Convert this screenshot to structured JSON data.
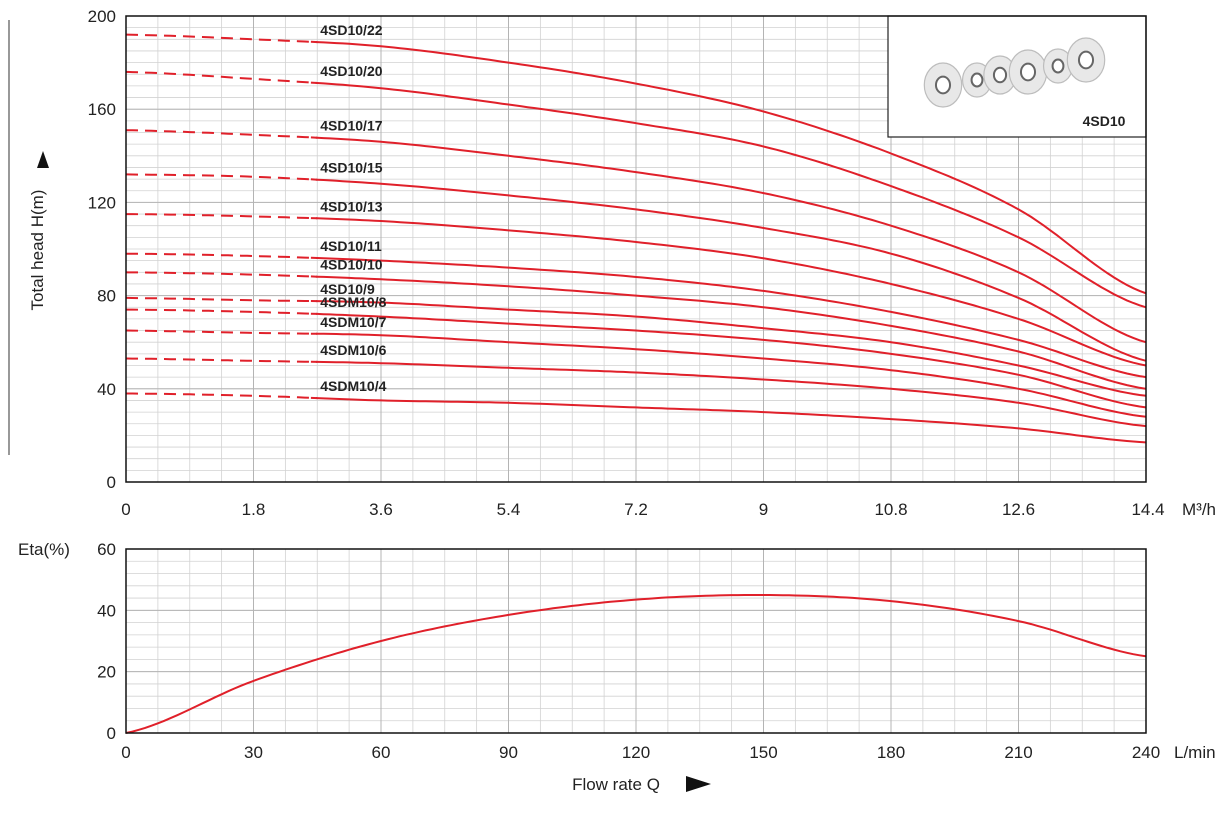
{
  "chart_data": [
    {
      "type": "line",
      "title": "",
      "xlabel": "",
      "ylabel": "Total head H(m)",
      "x_unit": "M³/h",
      "xlim": [
        0,
        14.4
      ],
      "ylim": [
        0,
        200
      ],
      "x_ticks": [
        "0",
        "1.8",
        "3.6",
        "5.4",
        "7.2",
        "9",
        "10.8",
        "12.6",
        "14.4"
      ],
      "y_ticks": [
        "0",
        "40",
        "80",
        "120",
        "160",
        "200"
      ],
      "grid": true,
      "x": [
        0,
        1.8,
        3.6,
        5.4,
        7.2,
        9,
        10.8,
        12.6,
        14.4
      ],
      "series": [
        {
          "name": "4SD10/22",
          "values": [
            192,
            190,
            187,
            180,
            171,
            159,
            141,
            117,
            81
          ]
        },
        {
          "name": "4SD10/20",
          "values": [
            176,
            173,
            169,
            162,
            154,
            144,
            127,
            105,
            75
          ]
        },
        {
          "name": "4SD10/17",
          "values": [
            151,
            149,
            146,
            140,
            133,
            124,
            110,
            90,
            60
          ]
        },
        {
          "name": "4SD10/15",
          "values": [
            132,
            131,
            128,
            123,
            117,
            109,
            98,
            79,
            52
          ]
        },
        {
          "name": "4SD10/13",
          "values": [
            115,
            114,
            112,
            108,
            103,
            96,
            85,
            70,
            50
          ]
        },
        {
          "name": "4SD10/11",
          "values": [
            98,
            97,
            95,
            92,
            88,
            82,
            73,
            61,
            45
          ]
        },
        {
          "name": "4SD10/10",
          "values": [
            90,
            89,
            87,
            84,
            80,
            75,
            67,
            56,
            40
          ]
        },
        {
          "name": "4SD10/9",
          "values": [
            79,
            78,
            77,
            74,
            71,
            66,
            60,
            50,
            37
          ]
        },
        {
          "name": "4SDM10/8",
          "values": [
            74,
            73,
            71,
            68,
            65,
            61,
            55,
            46,
            32
          ]
        },
        {
          "name": "4SDM10/7",
          "values": [
            65,
            64,
            63,
            60,
            57,
            53,
            48,
            40,
            28
          ]
        },
        {
          "name": "4SDM10/6",
          "values": [
            53,
            52,
            51,
            49,
            47,
            44,
            40,
            34,
            24
          ]
        },
        {
          "name": "4SDM10/4",
          "values": [
            38,
            37,
            35,
            34,
            32,
            30,
            27,
            23,
            17
          ]
        }
      ],
      "dashed_until_x": 2.7,
      "line_color": "#e0202a",
      "inset_label": "4SD10"
    },
    {
      "type": "line",
      "title": "",
      "xlabel": "Flow rate Q",
      "ylabel": "Eta(%)",
      "x_unit": "L/min",
      "xlim": [
        0,
        240
      ],
      "ylim": [
        0,
        60
      ],
      "x_ticks": [
        "0",
        "30",
        "60",
        "90",
        "120",
        "150",
        "180",
        "210",
        "240"
      ],
      "y_ticks": [
        "0",
        "20",
        "40",
        "60"
      ],
      "grid": true,
      "x": [
        0,
        30,
        60,
        90,
        120,
        150,
        180,
        210,
        240
      ],
      "series": [
        {
          "values": [
            0,
            17,
            30,
            38.5,
            43.5,
            45,
            43,
            36.5,
            25
          ]
        }
      ],
      "line_color": "#e0202a"
    }
  ]
}
